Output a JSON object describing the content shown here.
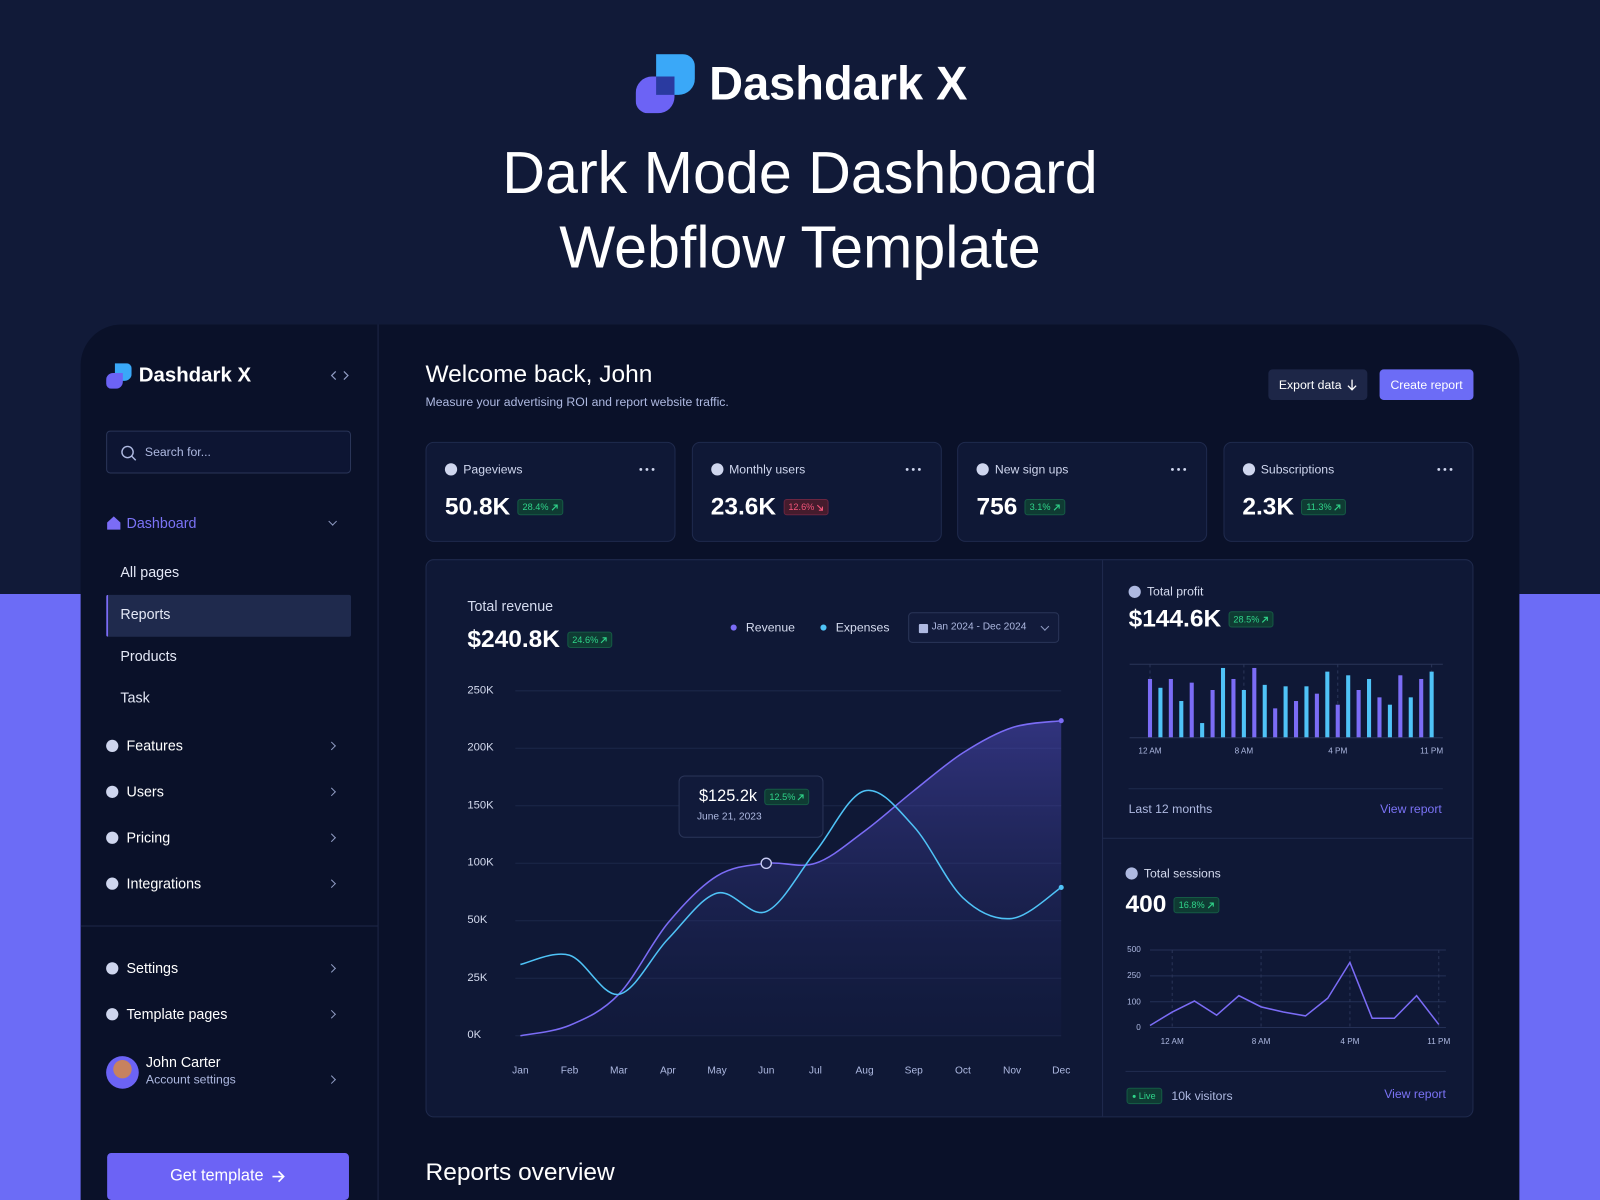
{
  "hero": {
    "brand": "Dashdark X",
    "title": [
      "Dark Mode Dashboard",
      "Webflow Template"
    ]
  },
  "sidebar": {
    "brand": "Dashdark X",
    "search": "Search for...",
    "dashboard": "Dashboard",
    "pages": [
      "All pages",
      "Reports",
      "Products",
      "Task"
    ],
    "menu": [
      "Features",
      "Users",
      "Pricing",
      "Integrations"
    ],
    "footer_menu": [
      "Settings",
      "Template pages"
    ],
    "user": {
      "name": "John Carter",
      "subtitle": "Account settings"
    },
    "cta": "Get template"
  },
  "header": {
    "title": "Welcome back, John",
    "subtitle": "Measure your advertising ROI and report website traffic.",
    "export": "Export data",
    "create": "Create report"
  },
  "stats": [
    {
      "label": "Pageviews",
      "value": "50.8K",
      "change": "28.4%",
      "trend": "up"
    },
    {
      "label": "Monthly users",
      "value": "23.6K",
      "change": "12.6%",
      "trend": "down"
    },
    {
      "label": "New sign ups",
      "value": "756",
      "change": "3.1%",
      "trend": "up"
    },
    {
      "label": "Subscriptions",
      "value": "2.3K",
      "change": "11.3%",
      "trend": "up"
    }
  ],
  "revenue": {
    "type": "line",
    "title": "Total revenue",
    "total": "$240.8K",
    "change": "24.6%",
    "date_range": "Jan 2024 - Dec 2024",
    "categories": [
      "Jan",
      "Feb",
      "Mar",
      "Apr",
      "May",
      "Jun",
      "Jul",
      "Aug",
      "Sep",
      "Oct",
      "Nov",
      "Dec"
    ],
    "series": [
      {
        "name": "Revenue",
        "color": "#7b6cf6",
        "values": [
          0,
          4.5,
          18,
          49,
          89,
          100,
          100,
          128,
          163,
          196,
          218,
          224
        ]
      },
      {
        "name": "Expenses",
        "color": "#4fc3f7",
        "values": [
          31,
          35,
          18,
          42,
          74,
          58,
          110,
          163,
          132,
          70,
          52,
          79
        ]
      }
    ],
    "ylim": [
      0,
      250
    ],
    "yticks": [
      {
        "value": 0,
        "label": "0K"
      },
      {
        "value": 25,
        "label": "25K"
      },
      {
        "value": 50,
        "label": "50K"
      },
      {
        "value": 100,
        "label": "100K"
      },
      {
        "value": 150,
        "label": "150K"
      },
      {
        "value": 200,
        "label": "200K"
      },
      {
        "value": 250,
        "label": "250K"
      }
    ],
    "tooltip": {
      "value": "$125.2k",
      "change": "12.5%",
      "date": "June 21, 2023"
    }
  },
  "profit": {
    "type": "bar",
    "title": "Total profit",
    "total": "$144.6K",
    "change": "28.5%",
    "categories": [
      "12 AM",
      null,
      null,
      null,
      null,
      null,
      null,
      null,
      null,
      "8 AM",
      null,
      null,
      null,
      null,
      null,
      null,
      null,
      null,
      "4 PM",
      null,
      null,
      null,
      null,
      null,
      null,
      null,
      null,
      "11 PM"
    ],
    "values": [
      80,
      68,
      80,
      50,
      75,
      20,
      65,
      95,
      80,
      65,
      95,
      72,
      40,
      70,
      50,
      70,
      60,
      90,
      45,
      85,
      65,
      80,
      55,
      45,
      85,
      55,
      80,
      90
    ],
    "colors": [
      "#7b6cf6",
      "#4fc3f7"
    ],
    "ylim": [
      0,
      100
    ],
    "period": "Last 12 months",
    "link": "View report"
  },
  "sessions": {
    "type": "line",
    "title": "Total sessions",
    "total": "400",
    "change": "16.8%",
    "categories": [
      null,
      "12 AM",
      null,
      null,
      null,
      "8 AM",
      null,
      null,
      null,
      "4 PM",
      null,
      null,
      null,
      "11 PM"
    ],
    "values": [
      8,
      60,
      104,
      48,
      135,
      80,
      60,
      45,
      120,
      380,
      36,
      36,
      135,
      12
    ],
    "color": "#7b6cf6",
    "ylim": [
      0,
      500
    ],
    "yticks": [
      0,
      100,
      250,
      500
    ],
    "status": "Live",
    "visitors": "10k visitors",
    "link": "View report"
  },
  "reports_title": "Reports overview"
}
